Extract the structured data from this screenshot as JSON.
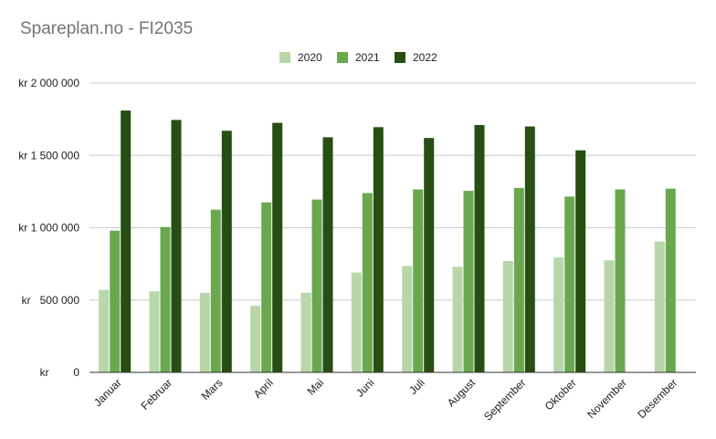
{
  "chart_data": {
    "type": "bar",
    "title": "Spareplan.no - FI2035",
    "xlabel": "",
    "ylabel": "",
    "categories": [
      "Januar",
      "Februar",
      "Mars",
      "April",
      "Mai",
      "Juni",
      "Juli",
      "August",
      "September",
      "Oktober",
      "November",
      "Desember"
    ],
    "series": [
      {
        "name": "2020",
        "color": "#b7d7a8",
        "values": [
          570000,
          560000,
          550000,
          460000,
          550000,
          690000,
          735000,
          730000,
          770000,
          795000,
          775000,
          905000
        ]
      },
      {
        "name": "2021",
        "color": "#6aa84f",
        "values": [
          980000,
          1005000,
          1125000,
          1175000,
          1195000,
          1240000,
          1265000,
          1255000,
          1275000,
          1215000,
          1265000,
          1270000
        ]
      },
      {
        "name": "2022",
        "color": "#274e13",
        "values": [
          1810000,
          1745000,
          1670000,
          1725000,
          1625000,
          1695000,
          1620000,
          1710000,
          1700000,
          1535000,
          null,
          null
        ]
      }
    ],
    "ylim": [
      0,
      2000000
    ],
    "yticks": [
      0,
      500000,
      1000000,
      1500000,
      2000000
    ],
    "ytick_labels": [
      "kr        0",
      "kr   500 000",
      "kr 1 000 000",
      "kr 1 500 000",
      "kr 2 000 000"
    ],
    "grid": true,
    "legend_position": "top-center"
  }
}
